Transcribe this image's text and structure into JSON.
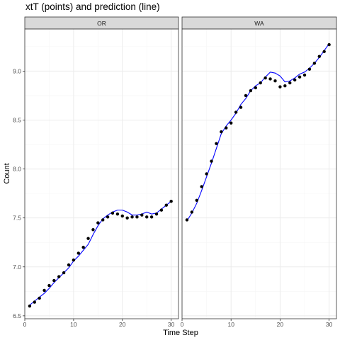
{
  "chart_data": {
    "type": "scatter",
    "title": "xtT (points) and prediction (line)",
    "xlabel": "Time Step",
    "ylabel": "Count",
    "xlim": [
      0,
      31.5
    ],
    "ylim": [
      6.47,
      9.43
    ],
    "x_ticks": [
      0,
      10,
      20,
      30
    ],
    "y_ticks": [
      6.5,
      7.0,
      7.5,
      8.0,
      8.5,
      9.0
    ],
    "x_tick_labels": [
      "0",
      "10",
      "20",
      "30"
    ],
    "y_tick_labels": [
      "6.5",
      "7.0",
      "7.5",
      "8.0",
      "8.5",
      "9.0"
    ],
    "grid": true,
    "colors": {
      "points": "#000000",
      "line": "#0000ff",
      "strip_bg": "#d9d9d9",
      "panel_border": "#333333",
      "grid_major": "#ebebeb",
      "grid_minor": "#f5f5f5"
    },
    "series": [
      {
        "name": "xtT",
        "mark": "points"
      },
      {
        "name": "prediction",
        "mark": "line"
      }
    ],
    "panels": [
      {
        "label": "OR",
        "x": [
          1,
          2,
          3,
          4,
          5,
          6,
          7,
          8,
          9,
          10,
          11,
          12,
          13,
          14,
          15,
          16,
          17,
          18,
          19,
          20,
          21,
          22,
          23,
          24,
          25,
          26,
          27,
          28,
          29,
          30
        ],
        "points": [
          6.6,
          6.64,
          6.68,
          6.76,
          6.81,
          6.86,
          6.9,
          6.94,
          7.02,
          7.07,
          7.14,
          7.2,
          7.29,
          7.38,
          7.45,
          7.48,
          7.51,
          7.55,
          7.54,
          7.52,
          7.5,
          7.51,
          7.51,
          7.53,
          7.51,
          7.51,
          7.54,
          7.58,
          7.63,
          7.67
        ],
        "prediction": [
          6.61,
          6.65,
          6.69,
          6.73,
          6.78,
          6.84,
          6.89,
          6.94,
          6.99,
          7.06,
          7.11,
          7.17,
          7.23,
          7.33,
          7.42,
          7.49,
          7.53,
          7.56,
          7.58,
          7.58,
          7.56,
          7.53,
          7.53,
          7.54,
          7.56,
          7.54,
          7.55,
          7.59,
          7.63,
          7.67
        ]
      },
      {
        "label": "WA",
        "x": [
          1,
          2,
          3,
          4,
          5,
          6,
          7,
          8,
          9,
          10,
          11,
          12,
          13,
          14,
          15,
          16,
          17,
          18,
          19,
          20,
          21,
          22,
          23,
          24,
          25,
          26,
          27,
          28,
          29,
          30
        ],
        "points": [
          7.48,
          7.56,
          7.68,
          7.82,
          7.95,
          8.08,
          8.26,
          8.38,
          8.42,
          8.47,
          8.58,
          8.63,
          8.75,
          8.8,
          8.83,
          8.88,
          8.93,
          8.92,
          8.9,
          8.84,
          8.85,
          8.88,
          8.91,
          8.94,
          8.96,
          9.02,
          9.08,
          9.15,
          9.2,
          9.27
        ],
        "prediction": [
          7.47,
          7.55,
          7.65,
          7.78,
          7.92,
          8.06,
          8.21,
          8.36,
          8.44,
          8.5,
          8.57,
          8.66,
          8.72,
          8.8,
          8.85,
          8.88,
          8.94,
          8.99,
          8.98,
          8.95,
          8.89,
          8.9,
          8.93,
          8.97,
          8.99,
          9.03,
          9.08,
          9.14,
          9.21,
          9.28
        ]
      }
    ]
  }
}
